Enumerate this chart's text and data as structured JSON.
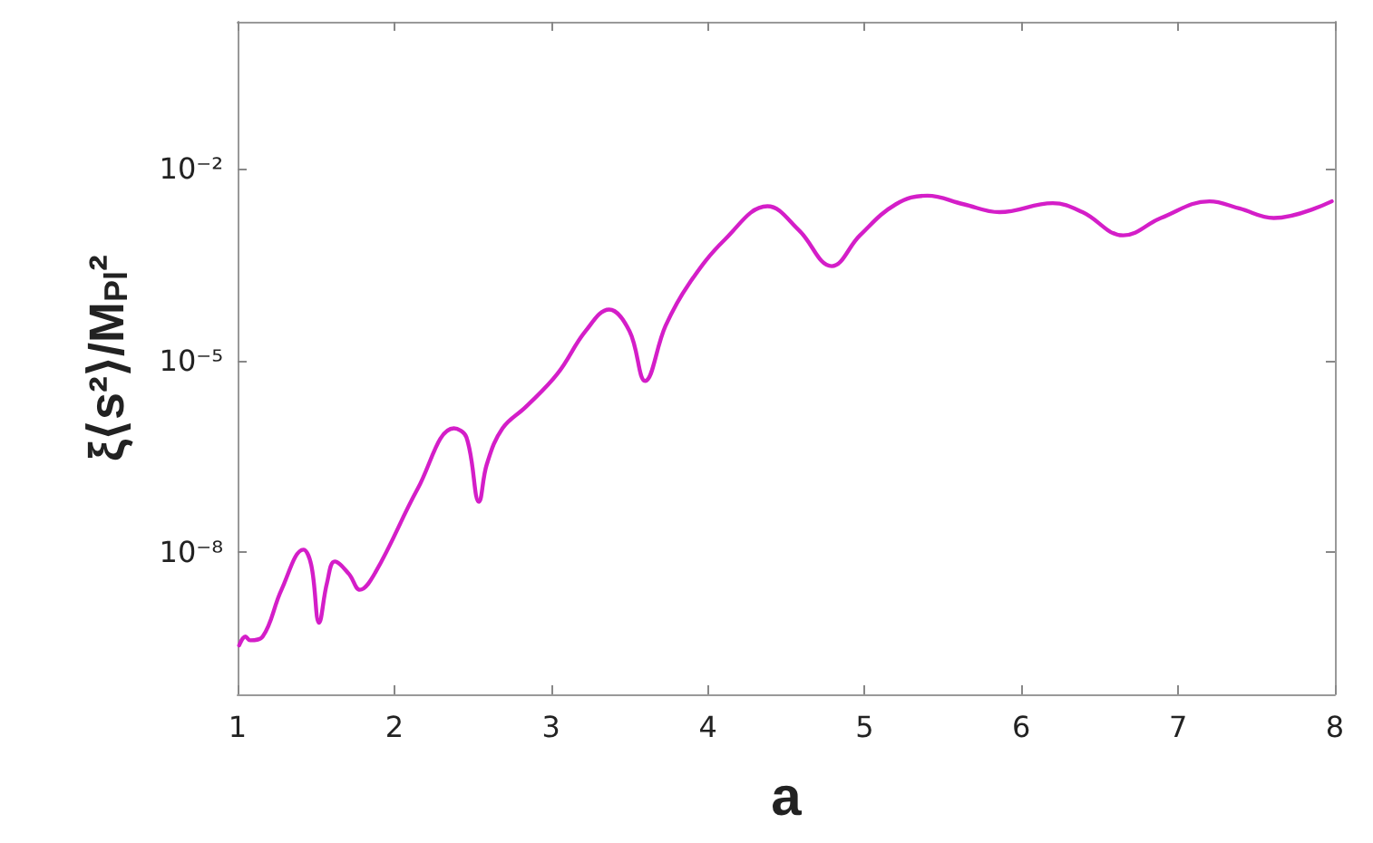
{
  "chart_data": {
    "type": "line",
    "xlabel": "a",
    "ylabel": "ξ⟨s²⟩/M$_{Pl}$²",
    "log": "y",
    "grid": false,
    "marker": "none",
    "line_style": "solid",
    "xlim": [
      1,
      8
    ],
    "ylim": [
      6e-11,
      2
    ],
    "xticks": [
      1,
      2,
      3,
      4,
      5,
      6,
      7,
      8
    ],
    "yticks": [
      {
        "value": 1e-08,
        "label": "10⁻⁸"
      },
      {
        "value": 1e-05,
        "label": "10⁻⁵"
      },
      {
        "value": 0.01,
        "label": "10⁻²"
      }
    ],
    "series": [
      {
        "color": "#d41ec8",
        "x": [
          1.01,
          1.05,
          1.08,
          1.16,
          1.28,
          1.42,
          1.47,
          1.52,
          1.57,
          1.62,
          1.71,
          1.78,
          1.88,
          2.15,
          2.38,
          2.46,
          2.54,
          2.59,
          2.69,
          2.84,
          3.04,
          3.22,
          3.37,
          3.5,
          3.6,
          3.73,
          3.88,
          4.11,
          4.38,
          4.58,
          4.79,
          4.97,
          5.2,
          5.4,
          5.63,
          5.86,
          6.2,
          6.39,
          6.65,
          6.89,
          7.2,
          7.39,
          7.61,
          7.98
        ],
        "values": [
          3.5e-10,
          4.8e-10,
          4.2e-10,
          4.8e-10,
          2.6e-09,
          1.1e-08,
          6.3e-09,
          7.9e-10,
          3.3e-09,
          7.2e-09,
          4.6e-09,
          2.6e-09,
          4.9e-09,
          1e-07,
          8.7e-07,
          6.3e-07,
          6.2e-08,
          2.4e-07,
          8.7e-07,
          1.9e-06,
          6.2e-06,
          2.9e-05,
          6.3e-05,
          2.9e-05,
          4.8e-06,
          3.5e-05,
          0.00016,
          0.00079,
          0.0026,
          0.0011,
          0.0003,
          0.00091,
          0.0028,
          0.0038,
          0.0028,
          0.0021,
          0.0029,
          0.0021,
          0.00091,
          0.0017,
          0.0031,
          0.0024,
          0.0017,
          0.0031
        ]
      }
    ]
  }
}
